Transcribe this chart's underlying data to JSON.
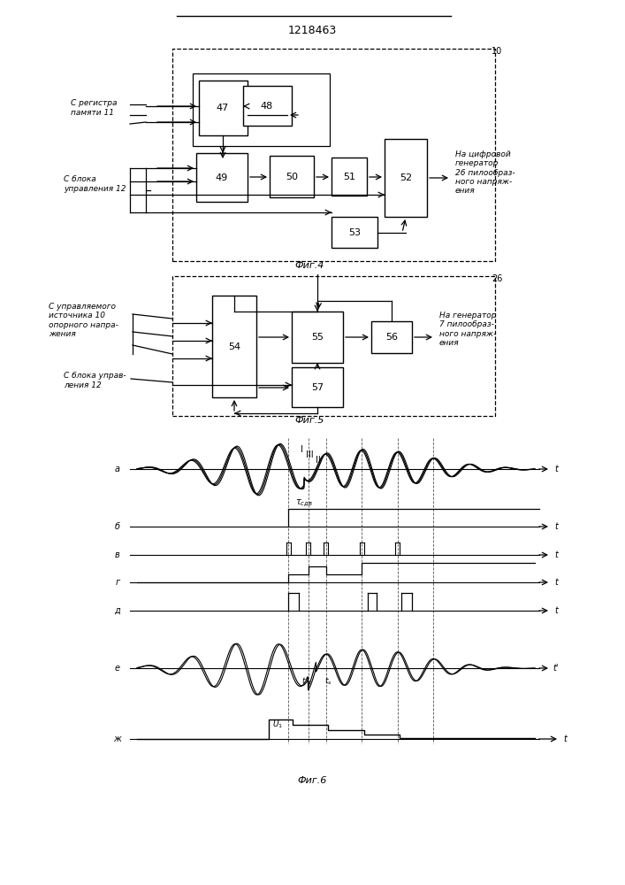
{
  "title": "1218463",
  "bg_color": "#ffffff",
  "lc": "#000000",
  "fig4_caption": "Фиг.4",
  "fig5_caption": "Фиг.5",
  "fig6_caption": "Фиг.6",
  "label_10": "10",
  "label_26": "26",
  "text_s_registra": "С регистра\nпамяти 11",
  "text_s_bloka": "С блока\nуправления 12",
  "text_na_cifr": "На цифровой\nгенератор\n26 пилообраз-\nного напряж-\nения",
  "text_s_uprav": "С управляемого\nисточника 10\nопорного напра-\nжения",
  "text_s_bloka2": "С блока управ-\nления 12",
  "text_na_gen": "На генератор\n7 пилообраз-\nного напряж-\nения"
}
